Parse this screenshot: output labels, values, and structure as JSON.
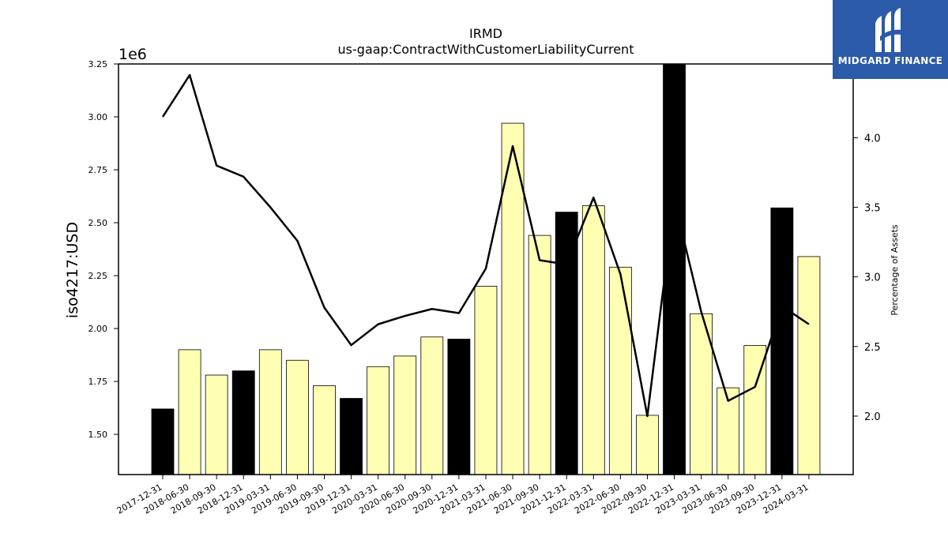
{
  "chart_data": {
    "type": "bar",
    "title": "IRMD",
    "subtitle": "us-gaap:ContractWithCustomerLiabilityCurrent",
    "ylabel": "iso4217:USD",
    "y2label": "Percentage of Assets",
    "y_scale_label": "1e6",
    "ylim": [
      1.31,
      3.25
    ],
    "y2lim": [
      1.58,
      4.53
    ],
    "y_ticks": [
      "1.50",
      "1.75",
      "2.00",
      "2.25",
      "2.50",
      "2.75",
      "3.00",
      "3.25"
    ],
    "y2_ticks": [
      "2.0",
      "2.5",
      "3.0",
      "3.5",
      "4.0"
    ],
    "categories": [
      "2017-12-31",
      "2018-06-30",
      "2018-09-30",
      "2018-12-31",
      "2019-03-31",
      "2019-06-30",
      "2019-09-30",
      "2019-12-31",
      "2020-03-31",
      "2020-06-30",
      "2020-09-30",
      "2020-12-31",
      "2021-03-31",
      "2021-06-30",
      "2021-09-30",
      "2021-12-31",
      "2022-03-31",
      "2022-06-30",
      "2022-09-30",
      "2022-12-31",
      "2023-03-31",
      "2023-06-30",
      "2023-09-30",
      "2023-12-31",
      "2024-03-31"
    ],
    "series": [
      {
        "values": [
          1.62,
          1.9,
          1.78,
          1.8,
          1.9,
          1.85,
          1.73,
          1.67,
          1.82,
          1.87,
          1.96,
          1.95,
          2.2,
          2.97,
          2.44,
          2.55,
          2.58,
          2.29,
          1.59,
          3.25,
          2.07,
          1.72,
          1.92,
          2.57,
          2.34
        ],
        "highlight": [
          true,
          false,
          false,
          true,
          false,
          false,
          false,
          true,
          false,
          false,
          false,
          true,
          false,
          false,
          false,
          true,
          false,
          false,
          false,
          true,
          false,
          false,
          false,
          true,
          false
        ]
      },
      {
        "values": [
          4.15,
          4.45,
          3.8,
          3.72,
          3.5,
          3.26,
          2.78,
          2.51,
          2.66,
          2.72,
          2.77,
          2.74,
          3.06,
          3.94,
          3.12,
          3.09,
          3.57,
          3.02,
          2.0,
          3.55,
          2.75,
          2.11,
          2.21,
          2.79,
          2.66
        ]
      }
    ],
    "colors": {
      "bar_default": "#ffffb3",
      "bar_highlight": "#000000",
      "line": "#000000",
      "bar_edge": "#000000"
    }
  },
  "logo": {
    "text": "MIDGARD FINANCE",
    "background": "#2a5aa8"
  }
}
